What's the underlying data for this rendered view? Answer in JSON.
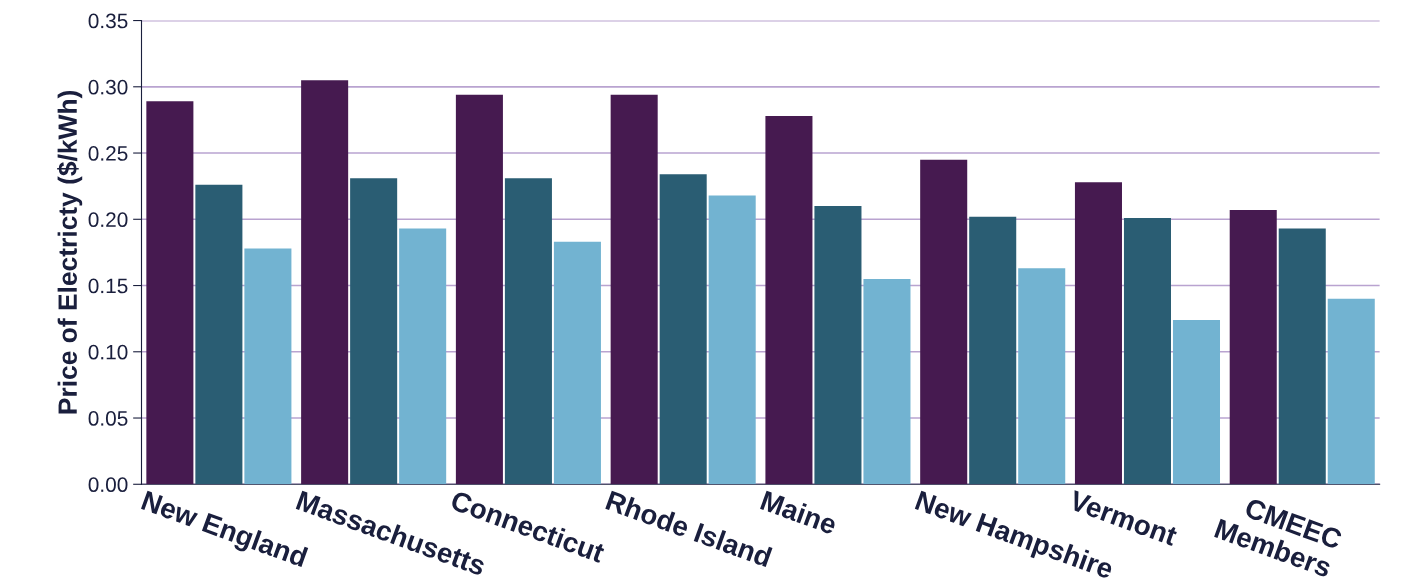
{
  "chart_data": {
    "type": "bar",
    "ylabel": "Price of Electricty ($/kWh)",
    "categories": [
      "New England",
      "Massachusetts",
      "Connecticut",
      "Rhode Island",
      "Maine",
      "New Hampshire",
      "Vermont",
      "CMEEC\nMembers"
    ],
    "series": [
      {
        "color": "#461a50",
        "values": [
          0.289,
          0.305,
          0.294,
          0.294,
          0.278,
          0.245,
          0.228,
          0.207
        ]
      },
      {
        "color": "#2a5d73",
        "values": [
          0.226,
          0.231,
          0.231,
          0.234,
          0.21,
          0.202,
          0.201,
          0.193
        ]
      },
      {
        "color": "#72b3d1",
        "values": [
          0.178,
          0.193,
          0.183,
          0.218,
          0.155,
          0.163,
          0.124,
          0.14
        ]
      }
    ],
    "ylim": [
      0,
      0.35
    ],
    "yticks": [
      {
        "value": 0,
        "label": "0.00"
      },
      {
        "value": 0.05,
        "label": "0.05"
      },
      {
        "value": 0.1,
        "label": "0.10"
      },
      {
        "value": 0.15,
        "label": "0.15"
      },
      {
        "value": 0.2,
        "label": "0.20"
      },
      {
        "value": 0.25,
        "label": "0.25"
      },
      {
        "value": 0.3,
        "label": "0.30"
      },
      {
        "value": 0.35,
        "label": "0.35"
      }
    ],
    "grid": "y"
  }
}
